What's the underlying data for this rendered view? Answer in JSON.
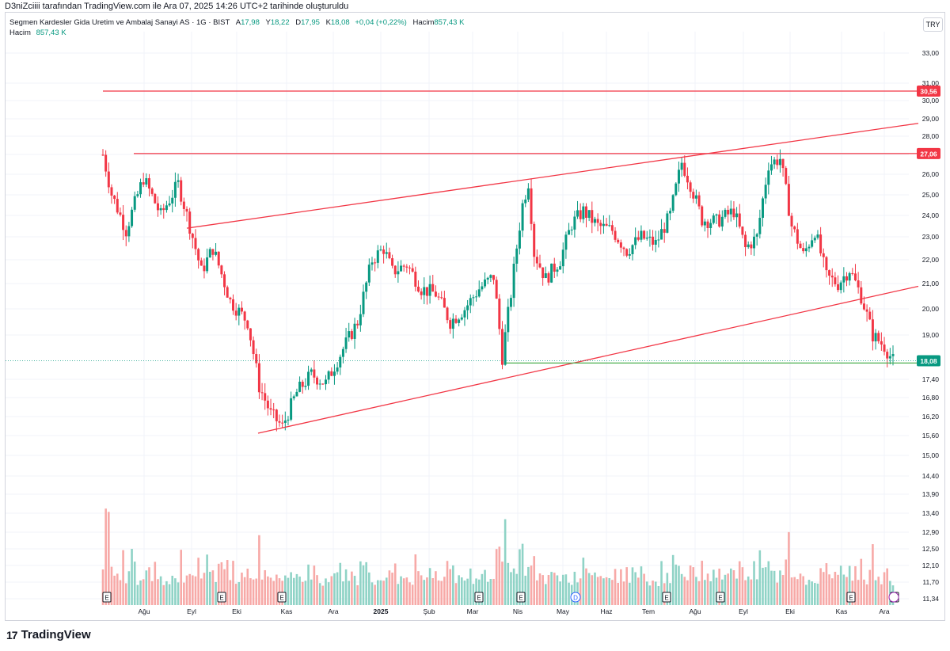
{
  "header": {
    "credit": "D3niZciiii tarafından TradingView.com ile Ara 07, 2025 14:26 UTC+2 tarihinde oluşturuldu",
    "symbol_line": "Segmen Kardesler Gida Uretim ve Ambalaj Sanayi AS · 1G · BIST",
    "open_label": "A",
    "open": "17,98",
    "high_label": "Y",
    "high": "18,22",
    "low_label": "D",
    "low": "17,95",
    "close_label": "K",
    "close": "18,08",
    "change": "+0,04 (+0,22%)",
    "volume_label": "Hacim",
    "volume": "857,43 K",
    "volume_row_label": "Hacim",
    "volume_row_value": "857,43 K",
    "currency": "TRY"
  },
  "brand": {
    "logo": "tradingview-logo",
    "name": "TradingView"
  },
  "colors": {
    "up": "#089981",
    "down": "#f23645",
    "line": "#f23645",
    "support": "#4caf50",
    "vol_up": "#8fd3c6",
    "vol_down": "#f7a9a7",
    "grid": "#f0f3fa"
  },
  "chart_data": {
    "type": "candlestick",
    "symbol": "Segmen Kardesler Gida Uretim ve Ambalaj Sanayi AS",
    "interval": "1G",
    "exchange": "BIST",
    "scale": "log",
    "x_labels": [
      "Ağu",
      "Eyl",
      "Eki",
      "Kas",
      "Ara",
      "2025",
      "Şub",
      "Mar",
      "Nis",
      "May",
      "Haz",
      "Tem",
      "Ağu",
      "Eyl",
      "Eki",
      "Kas",
      "Ara"
    ],
    "y_ticks": [
      "33,00",
      "31,00",
      "30,00",
      "29,00",
      "28,00",
      "27,00",
      "26,00",
      "25,00",
      "24,00",
      "23,00",
      "22,00",
      "21,00",
      "20,00",
      "19,00",
      "17,40",
      "16,80",
      "16,20",
      "15,60",
      "15,00",
      "14,40",
      "13,90",
      "13,40",
      "12,90",
      "12,50",
      "12,10",
      "11,70",
      "11,34"
    ],
    "price_badges": [
      {
        "value": "30,56",
        "kind": "horizontal-line"
      },
      {
        "value": "27,06",
        "kind": "horizontal-line"
      },
      {
        "value": "18,08",
        "kind": "last-price"
      }
    ],
    "price_path": [
      {
        "t": 0,
        "p": 27.0
      },
      {
        "t": 3,
        "p": 25.0
      },
      {
        "t": 8,
        "p": 23.3
      },
      {
        "t": 14,
        "p": 25.8
      },
      {
        "t": 20,
        "p": 24.0
      },
      {
        "t": 26,
        "p": 25.5
      },
      {
        "t": 30,
        "p": 23.5
      },
      {
        "t": 34,
        "p": 21.5
      },
      {
        "t": 38,
        "p": 22.5
      },
      {
        "t": 44,
        "p": 20.3
      },
      {
        "t": 50,
        "p": 19.5
      },
      {
        "t": 54,
        "p": 17.2
      },
      {
        "t": 58,
        "p": 16.3
      },
      {
        "t": 62,
        "p": 15.9
      },
      {
        "t": 67,
        "p": 17.0
      },
      {
        "t": 72,
        "p": 17.6
      },
      {
        "t": 77,
        "p": 17.3
      },
      {
        "t": 82,
        "p": 18.3
      },
      {
        "t": 88,
        "p": 19.5
      },
      {
        "t": 93,
        "p": 22.0
      },
      {
        "t": 97,
        "p": 22.5
      },
      {
        "t": 100,
        "p": 21.5
      },
      {
        "t": 105,
        "p": 21.8
      },
      {
        "t": 110,
        "p": 20.8
      },
      {
        "t": 115,
        "p": 20.6
      },
      {
        "t": 120,
        "p": 19.5
      },
      {
        "t": 125,
        "p": 20.0
      },
      {
        "t": 130,
        "p": 20.8
      },
      {
        "t": 135,
        "p": 21.3
      },
      {
        "t": 138,
        "p": 18.2
      },
      {
        "t": 141,
        "p": 20.6
      },
      {
        "t": 145,
        "p": 24.5
      },
      {
        "t": 147,
        "p": 25.6
      },
      {
        "t": 149,
        "p": 22.3
      },
      {
        "t": 153,
        "p": 21.2
      },
      {
        "t": 158,
        "p": 22.0
      },
      {
        "t": 162,
        "p": 23.6
      },
      {
        "t": 166,
        "p": 24.2
      },
      {
        "t": 171,
        "p": 23.5
      },
      {
        "t": 176,
        "p": 23.3
      },
      {
        "t": 181,
        "p": 22.4
      },
      {
        "t": 186,
        "p": 23.0
      },
      {
        "t": 191,
        "p": 22.7
      },
      {
        "t": 196,
        "p": 24.0
      },
      {
        "t": 200,
        "p": 26.6
      },
      {
        "t": 203,
        "p": 25.5
      },
      {
        "t": 207,
        "p": 23.8
      },
      {
        "t": 212,
        "p": 23.7
      },
      {
        "t": 218,
        "p": 24.2
      },
      {
        "t": 222,
        "p": 22.5
      },
      {
        "t": 226,
        "p": 23.0
      },
      {
        "t": 230,
        "p": 26.5
      },
      {
        "t": 234,
        "p": 26.8
      },
      {
        "t": 238,
        "p": 23.5
      },
      {
        "t": 242,
        "p": 22.2
      },
      {
        "t": 246,
        "p": 23.3
      },
      {
        "t": 250,
        "p": 21.3
      },
      {
        "t": 254,
        "p": 21.0
      },
      {
        "t": 258,
        "p": 21.6
      },
      {
        "t": 262,
        "p": 20.5
      },
      {
        "t": 266,
        "p": 19.0
      },
      {
        "t": 270,
        "p": 18.6
      },
      {
        "t": 273,
        "p": 18.08
      }
    ],
    "volume": {
      "label": "Hacim",
      "last": "857,43 K"
    },
    "drawings": [
      {
        "type": "horizontal",
        "price": 30.56,
        "from": "Tem 2024",
        "to": "Ara 2025"
      },
      {
        "type": "horizontal",
        "price": 27.06,
        "from": "Ağu 2024",
        "to": "Ara 2025"
      },
      {
        "type": "trendline",
        "from": {
          "date": "Eyl 2024",
          "price": 23.4
        },
        "to": {
          "date": "Ara 2025",
          "price": 28.7
        }
      },
      {
        "type": "trendline",
        "from": {
          "date": "Eki 2024",
          "price": 15.7
        },
        "to": {
          "date": "Ara 2025",
          "price": 20.9
        }
      },
      {
        "type": "horizontal",
        "price": 18.0,
        "from": "Mar 2025",
        "to": "Ara 2025",
        "color": "green"
      }
    ],
    "event_markers": [
      "E",
      "E",
      "E",
      "E",
      "E",
      "D",
      "E",
      "E",
      "E",
      "E",
      "E",
      "E"
    ]
  }
}
